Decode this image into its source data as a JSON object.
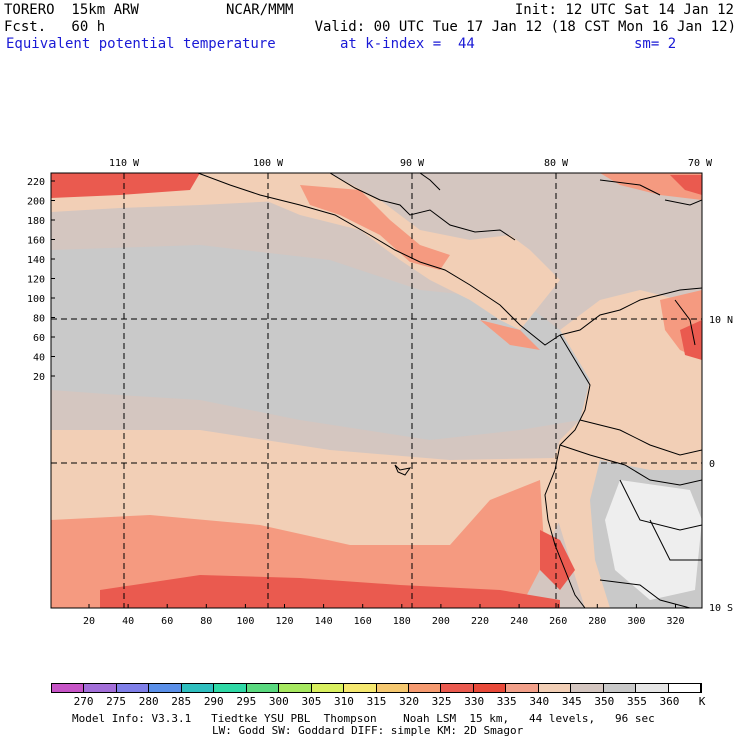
{
  "header": {
    "model": "TORERO  15km ARW",
    "center": "NCAR/MMM",
    "init": "Init: 12 UTC Sat 14 Jan 12",
    "fcst": "Fcst.   60 h",
    "valid": "Valid: 00 UTC Tue 17 Jan 12 (18 CST Mon 16 Jan 12)",
    "field": "Equivalent potential temperature",
    "level": "at k-index =  44",
    "smooth": "sm= 2"
  },
  "map": {
    "top_lon_labels": [
      "110 W",
      "100 W",
      "90 W",
      "80 W",
      "70 W"
    ],
    "right_lat_labels": [
      "10 N",
      "0",
      "10 S"
    ],
    "left_y_ticks": [
      "220",
      "200",
      "180",
      "160",
      "140",
      "120",
      "100",
      "80",
      "60",
      "40",
      "20"
    ],
    "bottom_x_ticks": [
      "20",
      "40",
      "60",
      "80",
      "100",
      "120",
      "140",
      "160",
      "180",
      "200",
      "220",
      "240",
      "260",
      "280",
      "300",
      "320"
    ],
    "colors": {
      "ocean_warm_band": "#f2cfb6",
      "ocean_cool_band": "#d4c6c0",
      "itcz_gray": "#c9c9c9",
      "hot_red": "#ea5a4f",
      "salmon": "#f59a80",
      "land_light": "#eeeeee"
    }
  },
  "colorbar": {
    "labels": [
      "270",
      "275",
      "280",
      "285",
      "290",
      "295",
      "300",
      "305",
      "310",
      "315",
      "320",
      "325",
      "330",
      "335",
      "340",
      "345",
      "350",
      "355",
      "360"
    ],
    "unit": "K",
    "colors": [
      "#c654c6",
      "#a36fd9",
      "#7f7fe8",
      "#5a8fe8",
      "#2fbfbf",
      "#2fd9a6",
      "#5ad97f",
      "#a6e860",
      "#d9f060",
      "#f5e870",
      "#f5c870",
      "#f59a70",
      "#ea5a4f",
      "#e84a3a",
      "#f2a08a",
      "#f2cfb6",
      "#d4c6c0",
      "#c9c9c9",
      "#e6e6e6",
      "#ffffff"
    ]
  },
  "footer": {
    "line1": "Model Info: V3.3.1   Tiedtke YSU PBL  Thompson    Noah LSM  15 km,   44 levels,   96 sec",
    "line2": "LW: Godd SW: Goddard DIFF: simple KM: 2D Smagor"
  }
}
